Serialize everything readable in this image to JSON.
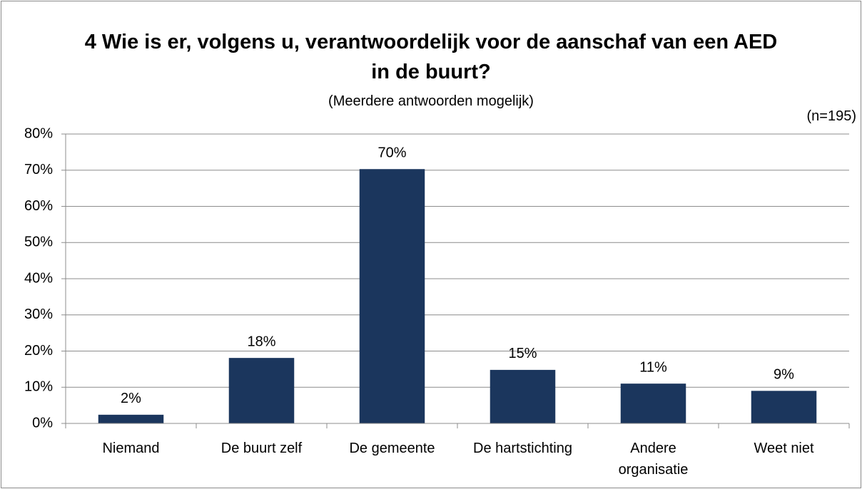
{
  "chart_data": {
    "type": "bar",
    "title": "4 Wie is er, volgens u, verantwoordelijk voor de aanschaf van een AED in de buurt?",
    "subtitle": "(Meerdere antwoorden mogelijk)",
    "annotation": "(n=195)",
    "categories": [
      "Niemand",
      "De buurt zelf",
      "De gemeente",
      "De hartstichting",
      "Andere\norganisatie",
      "Weet niet"
    ],
    "values": [
      2.4,
      18.1,
      70.3,
      14.8,
      11,
      9
    ],
    "value_labels": [
      "2%",
      "18%",
      "70%",
      "15%",
      "11%",
      "9%"
    ],
    "color": "#1b365d",
    "ylim": [
      0,
      80
    ],
    "yticks": [
      {
        "value": 0,
        "label": "0%"
      },
      {
        "value": 10,
        "label": "10%"
      },
      {
        "value": 20,
        "label": "20%"
      },
      {
        "value": 30,
        "label": "30%"
      },
      {
        "value": 40,
        "label": "40%"
      },
      {
        "value": 50,
        "label": "50%"
      },
      {
        "value": 60,
        "label": "60%"
      },
      {
        "value": 70,
        "label": "70%"
      },
      {
        "value": 80,
        "label": "80%"
      }
    ],
    "grid": true
  }
}
